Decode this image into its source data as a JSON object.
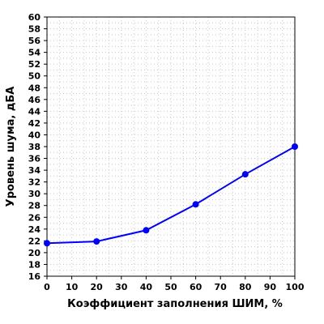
{
  "chart_data": {
    "type": "line",
    "title": "",
    "xlabel": "Коэффициент заполнения ШИМ, %",
    "ylabel": "Уровень шума, дБА",
    "xlim": [
      0,
      100
    ],
    "ylim": [
      16,
      60
    ],
    "x_ticks": [
      0,
      10,
      20,
      30,
      40,
      50,
      60,
      70,
      80,
      90,
      100
    ],
    "y_ticks": [
      16,
      18,
      20,
      22,
      24,
      26,
      28,
      30,
      32,
      34,
      36,
      38,
      40,
      42,
      44,
      46,
      48,
      50,
      52,
      54,
      56,
      58,
      60
    ],
    "grid": true,
    "series": [
      {
        "color": "#0000ff",
        "x": [
          0,
          20,
          40,
          60,
          80,
          100
        ],
        "y": [
          21.6,
          21.9,
          23.8,
          28.2,
          33.3,
          38.0
        ]
      }
    ]
  }
}
